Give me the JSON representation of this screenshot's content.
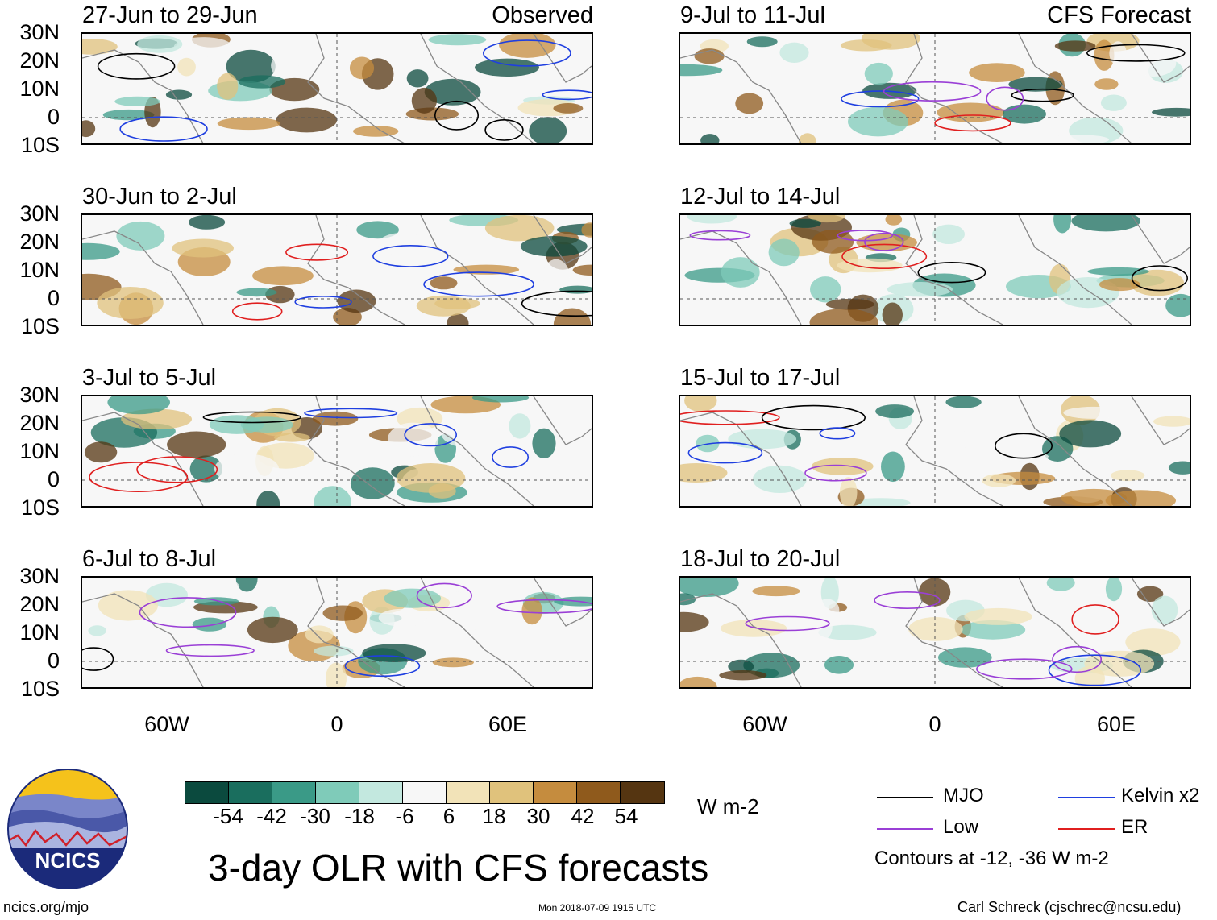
{
  "observed_label": "Observed",
  "forecast_label": "CFS Forecast",
  "observed_panels": [
    {
      "title": "27-Jun to 29-Jun"
    },
    {
      "title": "30-Jun to 2-Jul"
    },
    {
      "title": "3-Jul to 5-Jul"
    },
    {
      "title": "6-Jul to 8-Jul"
    }
  ],
  "forecast_panels": [
    {
      "title": "9-Jul to 11-Jul"
    },
    {
      "title": "12-Jul to 14-Jul"
    },
    {
      "title": "15-Jul to 17-Jul"
    },
    {
      "title": "18-Jul to 20-Jul"
    }
  ],
  "lat_labels": [
    "30N",
    "20N",
    "10N",
    "0",
    "10S"
  ],
  "lon_labels": [
    "60W",
    "0",
    "60E"
  ],
  "colorbar": {
    "colors": [
      "#0b4a3e",
      "#1a6e5e",
      "#3a9a87",
      "#7fcbb9",
      "#c3e8df",
      "#f7f7f7",
      "#f2e3b8",
      "#e0c27c",
      "#c58c3e",
      "#8f5a1c",
      "#553511"
    ],
    "labels": [
      "-54",
      "-42",
      "-30",
      "-18",
      "-6",
      "6",
      "18",
      "30",
      "42",
      "54"
    ],
    "units": "W m-2"
  },
  "legend": {
    "items": [
      {
        "label": "MJO",
        "color": "#000000"
      },
      {
        "label": "Kelvin x2",
        "color": "#1f3fe0"
      },
      {
        "label": "Low",
        "color": "#9a3fd6"
      },
      {
        "label": "ER",
        "color": "#e01f1f"
      }
    ],
    "note": "Contours at -12, -36 W m-2"
  },
  "main_title": "3-day OLR with CFS forecasts",
  "logo_text": "NCICS",
  "footer_left": "ncics.org/mjo",
  "footer_center": "Mon 2018-07-09 1915 UTC",
  "footer_right": "Carl Schreck (cjschrec@ncsu.edu)"
}
